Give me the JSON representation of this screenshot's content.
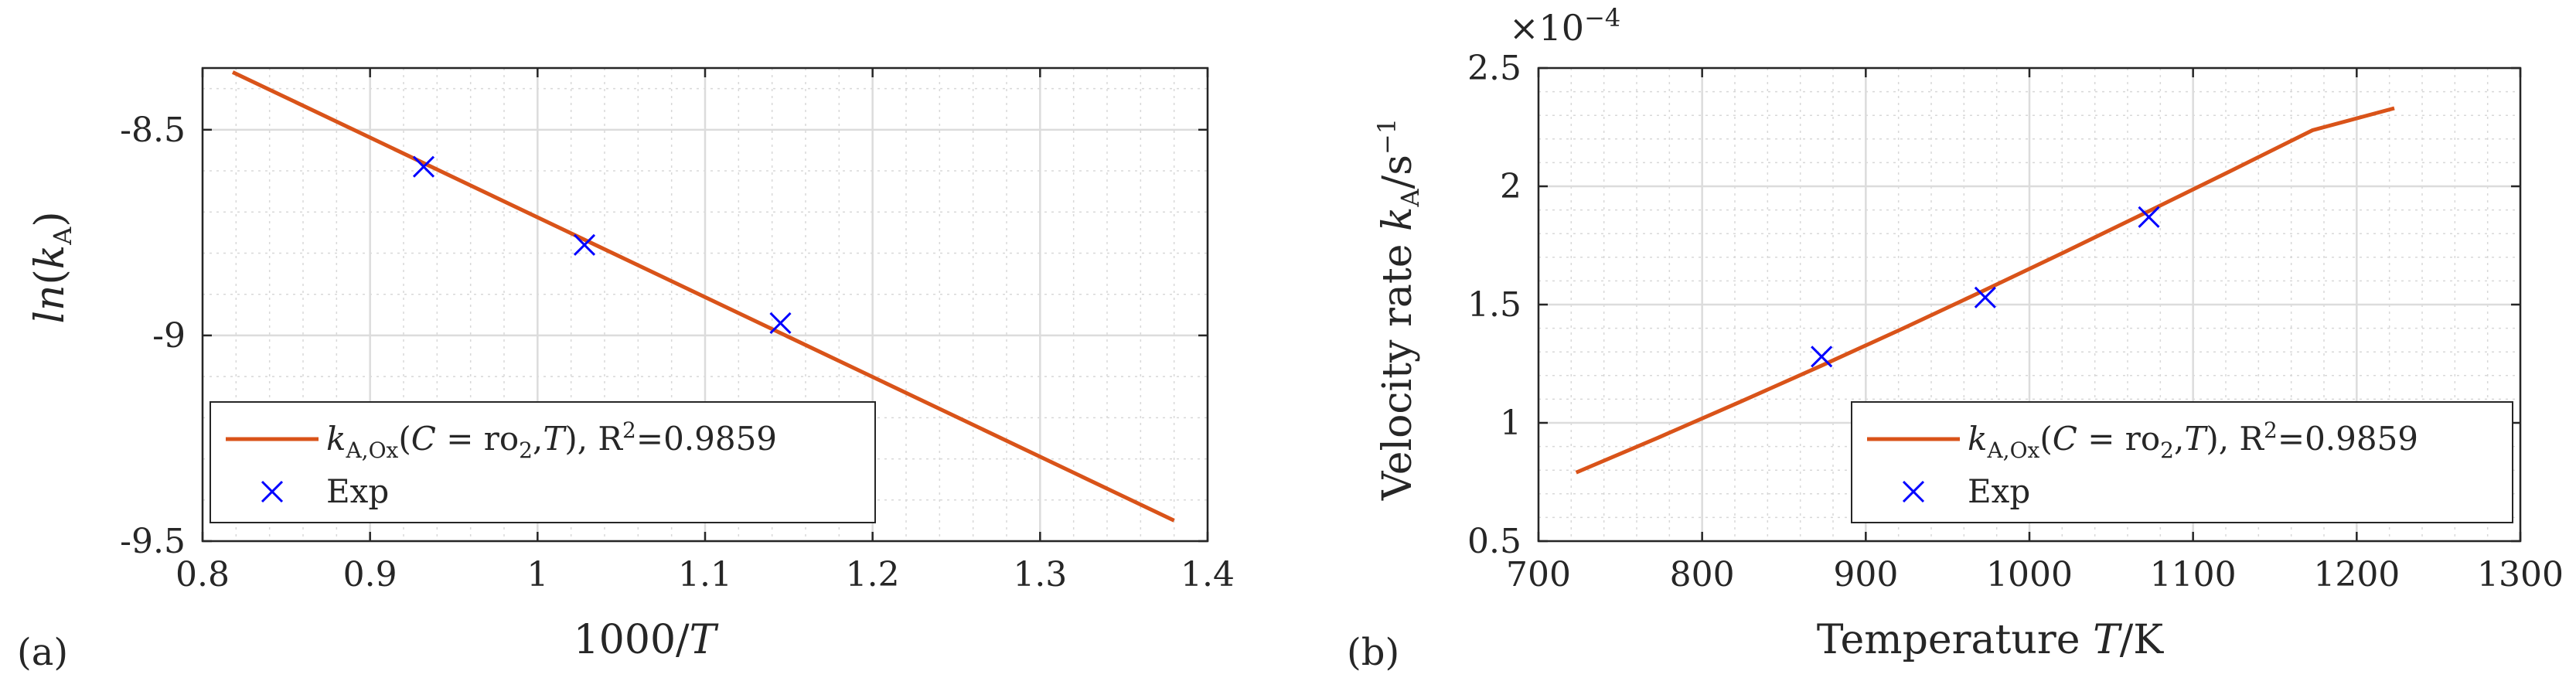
{
  "chart_data": [
    {
      "panel": "(a)",
      "type": "line",
      "xlabel": "1000/T",
      "ylabel": "ln(k_A)",
      "xlim": [
        0.8,
        1.4
      ],
      "ylim": [
        -9.5,
        -8.35
      ],
      "xticks": [
        0.8,
        0.9,
        1.0,
        1.1,
        1.2,
        1.3,
        1.4
      ],
      "xtick_labels": [
        "0.8",
        "0.9",
        "1",
        "1.1",
        "1.2",
        "1.3",
        "1.4"
      ],
      "yticks": [
        -8.5,
        -9,
        -9.5
      ],
      "ytick_labels": [
        "-8.5",
        "-9",
        "-9.5"
      ],
      "grid": "major and minor",
      "series": [
        {
          "name": "k_A,Ox(C = ro2, T), R²=0.9859",
          "kind": "line",
          "color": "#D95319",
          "x": [
            0.818,
            1.38
          ],
          "y": [
            -8.36,
            -9.45
          ]
        },
        {
          "name": "Exp",
          "kind": "marker-x",
          "color": "#0000FF",
          "x": [
            0.932,
            1.028,
            1.145
          ],
          "y": [
            -8.59,
            -8.78,
            -8.97
          ]
        }
      ],
      "legend": {
        "position": "bottom-left",
        "fit_prefix": "k",
        "fit_sub": "A,Ox",
        "fit_open": "(",
        "fit_C": "C",
        "fit_eq": " = ro",
        "fit_sub2": "2",
        "fit_comma": ",",
        "fit_T": "T",
        "fit_close": "), R",
        "fit_sup": "2",
        "fit_r2": "=0.9859",
        "exp_label": "Exp"
      }
    },
    {
      "panel": "(b)",
      "type": "line",
      "xlabel": "Temperature T/K",
      "ylabel": "Velocity rate k_A/s^-1",
      "multiplier": "×10^-4",
      "xlim": [
        700,
        1300
      ],
      "ylim": [
        0.5,
        2.5
      ],
      "xticks": [
        700,
        800,
        900,
        1000,
        1100,
        1200,
        1300
      ],
      "xtick_labels": [
        "700",
        "800",
        "900",
        "1000",
        "1100",
        "1200",
        "1300"
      ],
      "yticks": [
        0.5,
        1,
        1.5,
        2,
        2.5
      ],
      "ytick_labels": [
        "0.5",
        "1",
        "1.5",
        "2",
        "2.5"
      ],
      "grid": "major and minor",
      "series": [
        {
          "name": "k_A,Ox(C = ro2, T), R²=0.9859",
          "kind": "line",
          "color": "#D95319",
          "x": [
            723,
            773,
            823,
            873,
            923,
            973,
            1023,
            1073,
            1123,
            1173,
            1223
          ],
          "y": [
            0.79,
            0.937,
            1.088,
            1.242,
            1.4,
            1.562,
            1.727,
            1.895,
            2.065,
            2.237,
            2.33
          ]
        },
        {
          "name": "Exp",
          "kind": "marker-x",
          "color": "#0000FF",
          "x": [
            873,
            973,
            1073
          ],
          "y": [
            1.28,
            1.53,
            1.87
          ]
        }
      ],
      "legend": {
        "position": "bottom-right",
        "fit_prefix": "k",
        "fit_sub": "A,Ox",
        "fit_open": "(",
        "fit_C": "C",
        "fit_eq": " = ro",
        "fit_sub2": "2",
        "fit_comma": ",",
        "fit_T": "T",
        "fit_close": "), R",
        "fit_sup": "2",
        "fit_r2": "=0.9859",
        "exp_label": "Exp"
      }
    }
  ],
  "labels": {
    "panel_a": "(a)",
    "panel_b": "(b)",
    "a_xlabel_num": "1000/",
    "a_xlabel_T": "T",
    "a_ylabel_ln": "ln",
    "a_ylabel_open": "(",
    "a_ylabel_k": "k",
    "a_ylabel_sub": "A",
    "a_ylabel_close": ")",
    "b_xlabel_text": "Temperature ",
    "b_xlabel_T": "T",
    "b_xlabel_unit": "/K",
    "b_ylabel_text": "Velocity rate ",
    "b_ylabel_k": "k",
    "b_ylabel_sub": "A",
    "b_ylabel_unit": "/s",
    "b_ylabel_sup": "−1",
    "b_mult_base": "×10",
    "b_mult_exp": "−4"
  }
}
